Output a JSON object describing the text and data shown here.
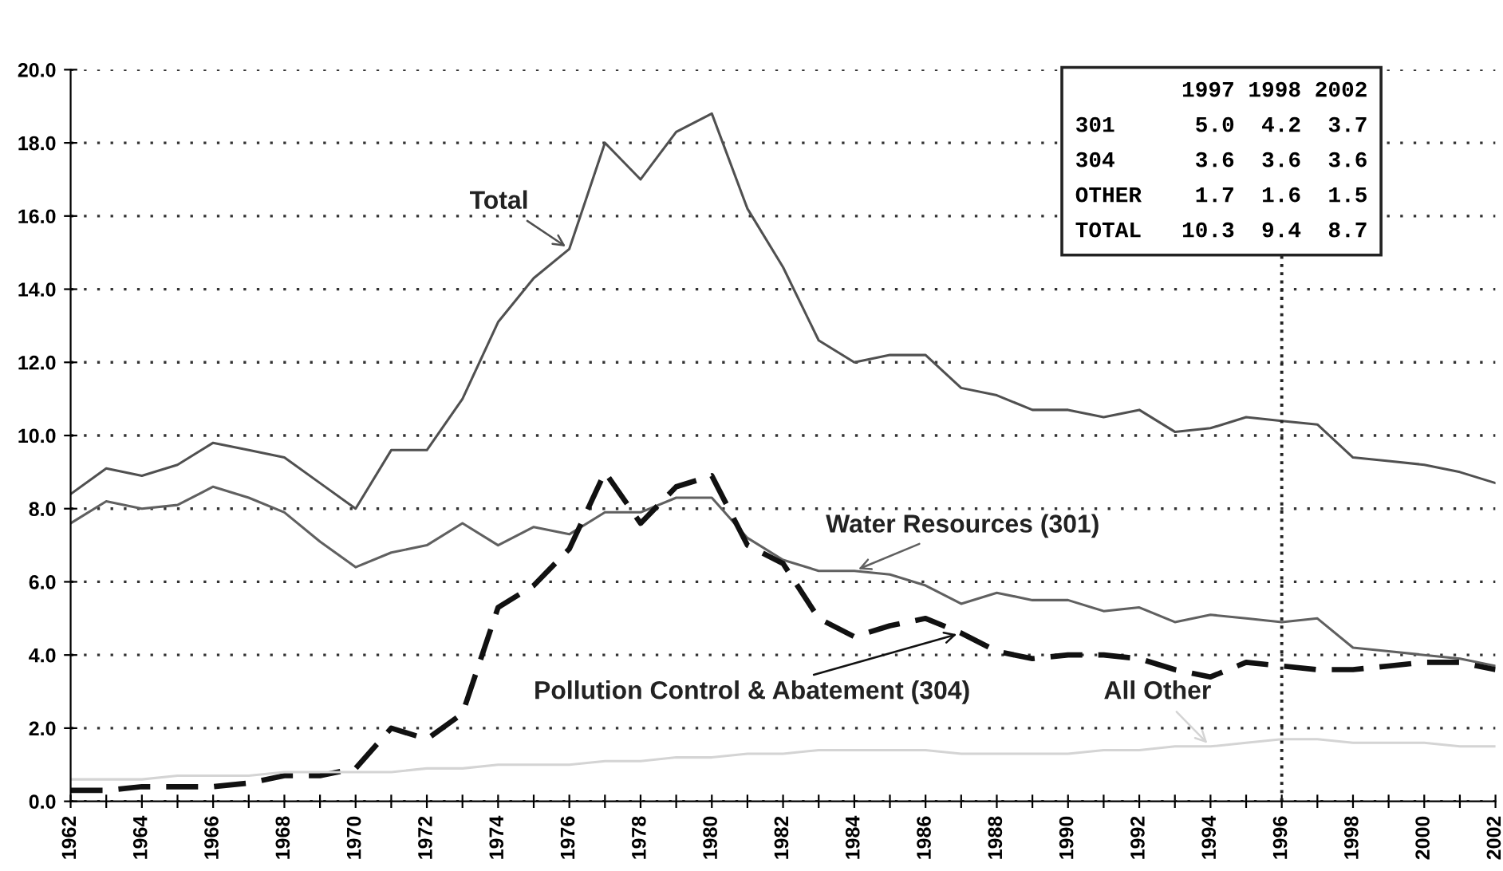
{
  "chart_data": {
    "type": "line",
    "x": [
      1962,
      1963,
      1964,
      1965,
      1966,
      1967,
      1968,
      1969,
      1970,
      1971,
      1972,
      1973,
      1974,
      1975,
      1976,
      1977,
      1978,
      1979,
      1980,
      1981,
      1982,
      1983,
      1984,
      1985,
      1986,
      1987,
      1988,
      1989,
      1990,
      1991,
      1992,
      1993,
      1994,
      1995,
      1996,
      1997,
      1998,
      1999,
      2000,
      2001,
      2002
    ],
    "series": [
      {
        "name": "Total",
        "color": "#505050",
        "line_style": "solid",
        "values": [
          8.4,
          9.1,
          8.9,
          9.2,
          9.8,
          9.6,
          9.4,
          8.7,
          8.0,
          9.6,
          9.6,
          11.0,
          13.1,
          14.3,
          15.1,
          18.0,
          17.0,
          18.3,
          18.8,
          16.2,
          14.6,
          12.6,
          12.0,
          12.2,
          12.2,
          11.3,
          11.1,
          10.7,
          10.7,
          10.5,
          10.7,
          10.1,
          10.2,
          10.5,
          10.4,
          10.3,
          9.4,
          9.3,
          9.2,
          9.0,
          8.7
        ]
      },
      {
        "name": "Water Resources (301)",
        "color": "#606060",
        "line_style": "solid",
        "values": [
          7.6,
          8.2,
          8.0,
          8.1,
          8.6,
          8.3,
          7.9,
          7.1,
          6.4,
          6.8,
          7.0,
          7.6,
          7.0,
          7.5,
          7.3,
          7.9,
          7.9,
          8.3,
          8.3,
          7.2,
          6.6,
          6.3,
          6.3,
          6.2,
          5.9,
          5.4,
          5.7,
          5.5,
          5.5,
          5.2,
          5.3,
          4.9,
          5.1,
          5.0,
          4.9,
          5.0,
          4.2,
          4.1,
          4.0,
          3.9,
          3.7
        ]
      },
      {
        "name": "Pollution Control & Abatement (304)",
        "color": "#111111",
        "line_style": "dashed",
        "values": [
          0.3,
          0.3,
          0.4,
          0.4,
          0.4,
          0.5,
          0.7,
          0.7,
          0.9,
          2.0,
          1.7,
          2.4,
          5.3,
          5.9,
          6.9,
          9.0,
          7.6,
          8.6,
          8.9,
          7.0,
          6.5,
          5.0,
          4.5,
          4.8,
          5.0,
          4.6,
          4.1,
          3.9,
          4.0,
          4.0,
          3.9,
          3.6,
          3.4,
          3.8,
          3.7,
          3.6,
          3.6,
          3.7,
          3.8,
          3.8,
          3.6
        ]
      },
      {
        "name": "All Other",
        "color": "#d4d4d4",
        "line_style": "solid",
        "values": [
          0.6,
          0.6,
          0.6,
          0.7,
          0.7,
          0.7,
          0.8,
          0.8,
          0.8,
          0.8,
          0.9,
          0.9,
          1.0,
          1.0,
          1.0,
          1.1,
          1.1,
          1.2,
          1.2,
          1.3,
          1.3,
          1.4,
          1.4,
          1.4,
          1.4,
          1.3,
          1.3,
          1.3,
          1.3,
          1.4,
          1.4,
          1.5,
          1.5,
          1.6,
          1.7,
          1.7,
          1.6,
          1.6,
          1.6,
          1.5,
          1.5
        ]
      }
    ],
    "xlim": [
      1962,
      2002
    ],
    "xticks": [
      1962,
      {
        "value": 1963,
        "label": null
      },
      1964,
      {
        "value": 1965,
        "label": null
      },
      1966,
      {
        "value": 1967,
        "label": null
      },
      1968,
      {
        "value": 1969,
        "label": null
      },
      1970,
      {
        "value": 1971,
        "label": null
      },
      1972,
      {
        "value": 1973,
        "label": null
      },
      1974,
      {
        "value": 1975,
        "label": null
      },
      1976,
      {
        "value": 1977,
        "label": null
      },
      1978,
      {
        "value": 1979,
        "label": null
      },
      1980,
      {
        "value": 1981,
        "label": null
      },
      1982,
      {
        "value": 1983,
        "label": null
      },
      1984,
      {
        "value": 1985,
        "label": null
      },
      1986,
      {
        "value": 1987,
        "label": null
      },
      1988,
      {
        "value": 1989,
        "label": null
      },
      1990,
      {
        "value": 1991,
        "label": null
      },
      1992,
      {
        "value": 1993,
        "label": null
      },
      1994,
      {
        "value": 1995,
        "label": null
      },
      1996,
      {
        "value": 1997,
        "label": null
      },
      1998,
      {
        "value": 1999,
        "label": null
      },
      2000,
      {
        "value": 2001,
        "label": null
      },
      2002
    ],
    "ylim": [
      0,
      20
    ],
    "yticks": [
      {
        "value": 0,
        "label": "0.0"
      },
      {
        "value": 2,
        "label": "2.0"
      },
      {
        "value": 4,
        "label": "4.0"
      },
      {
        "value": 6,
        "label": "6.0"
      },
      {
        "value": 8,
        "label": "8.0"
      },
      {
        "value": 10,
        "label": "10.0"
      },
      {
        "value": 12,
        "label": "12.0"
      },
      {
        "value": 14,
        "label": "14.0"
      },
      {
        "value": 16,
        "label": "16.0"
      },
      {
        "value": 18,
        "label": "18.0"
      },
      {
        "value": 20,
        "label": "20.0"
      }
    ],
    "grid": "y",
    "legend": false,
    "ref_lines": [
      {
        "axis": "x",
        "value": 1996,
        "line_style": "dotted",
        "color": "#222222"
      }
    ],
    "annotations": [
      "        1997 1998 2002\n301      5.0  4.2  3.7\n304      3.6  3.6  3.6\nOTHER    1.7  1.6  1.5\nTOTAL   10.3  9.4  8.7"
    ]
  }
}
